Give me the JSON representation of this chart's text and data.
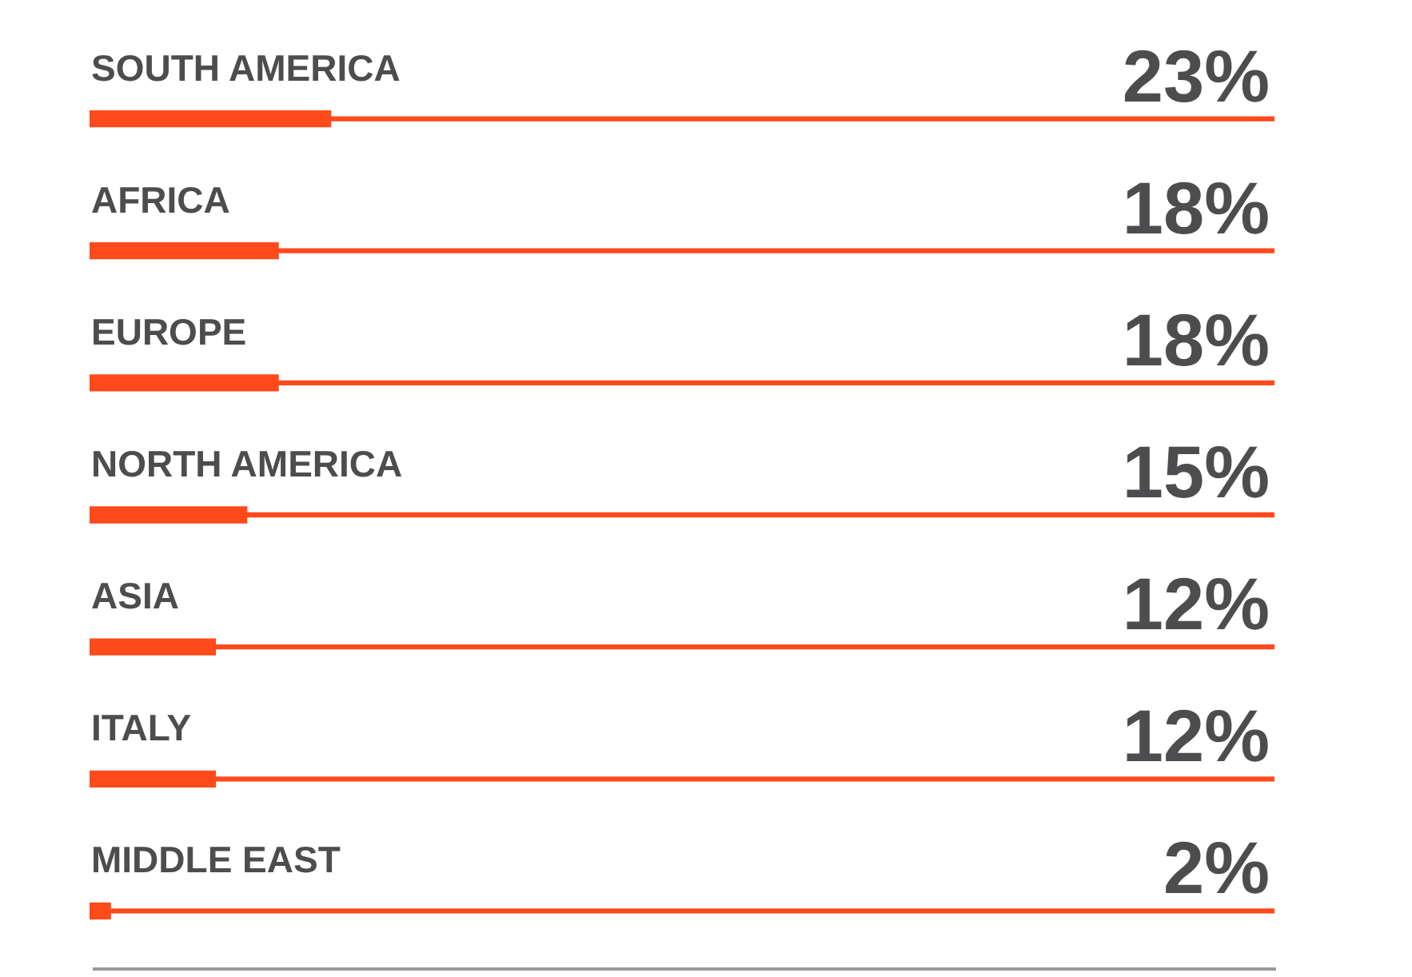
{
  "chart_data": {
    "type": "bar",
    "orientation": "horizontal",
    "categories": [
      "SOUTH AMERICA",
      "AFRICA",
      "EUROPE",
      "NORTH AMERICA",
      "ASIA",
      "ITALY",
      "MIDDLE EAST"
    ],
    "series": [
      {
        "color": "#ff4a1c",
        "values": [
          23,
          18,
          18,
          15,
          12,
          12,
          2
        ],
        "value_labels": [
          "23%",
          "18%",
          "18%",
          "15%",
          "12%",
          "12%",
          "2%"
        ]
      },
      {
        "color": "#ff4a1c",
        "values": [
          113,
          113,
          113,
          113,
          113,
          113,
          113
        ]
      }
    ],
    "xlim": [
      0,
      113
    ],
    "legend": false
  }
}
